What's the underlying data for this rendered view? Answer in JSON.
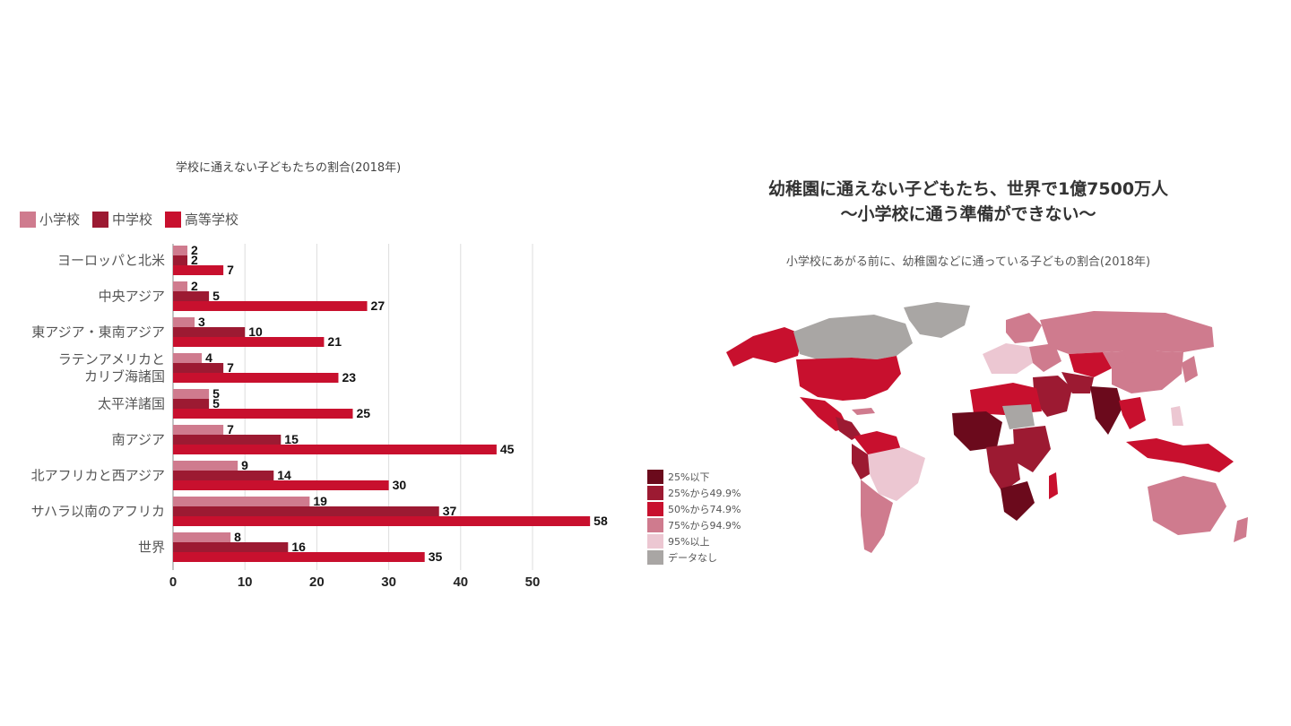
{
  "chart_data": [
    {
      "type": "bar",
      "orientation": "horizontal",
      "title": "学校に通えない子どもたちの割合(2018年)",
      "categories": [
        "ヨーロッパと北米",
        "中央アジア",
        "東アジア・東南アジア",
        "ラテンアメリカと\nカリブ海諸国",
        "太平洋諸国",
        "南アジア",
        "北アフリカと西アジア",
        "サハラ以南のアフリカ",
        "世界"
      ],
      "series": [
        {
          "name": "小学校",
          "color": "#cf7b8e",
          "values": [
            2,
            2,
            3,
            4,
            5,
            7,
            9,
            19,
            8
          ]
        },
        {
          "name": "中学校",
          "color": "#9c1a32",
          "values": [
            2,
            5,
            10,
            7,
            5,
            15,
            14,
            37,
            16
          ]
        },
        {
          "name": "高等学校",
          "color": "#c8102e",
          "values": [
            7,
            27,
            21,
            23,
            25,
            45,
            30,
            58,
            35
          ]
        }
      ],
      "xlim": [
        0,
        60
      ],
      "xticks": [
        0,
        10,
        20,
        30,
        40,
        50
      ],
      "grid": true,
      "legend": "top-left"
    },
    {
      "type": "choropleth",
      "title_lines": [
        "幼稚園に通えない子どもたち、世界で1億7500万人",
        "〜小学校に通う準備ができない〜"
      ],
      "subtitle": "小学校にあがる前に、幼稚園などに通っている子どもの割合(2018年)",
      "legend": "bottom-left",
      "legend_items": [
        {
          "label": "25%以下",
          "color": "#6b0a1c"
        },
        {
          "label": "25%から49.9%",
          "color": "#9c1a32"
        },
        {
          "label": "50%から74.9%",
          "color": "#c8102e"
        },
        {
          "label": "75%から94.9%",
          "color": "#cf7b8e"
        },
        {
          "label": "95%以上",
          "color": "#ecc7d2"
        },
        {
          "label": "データなし",
          "color": "#a9a6a4"
        }
      ]
    }
  ]
}
